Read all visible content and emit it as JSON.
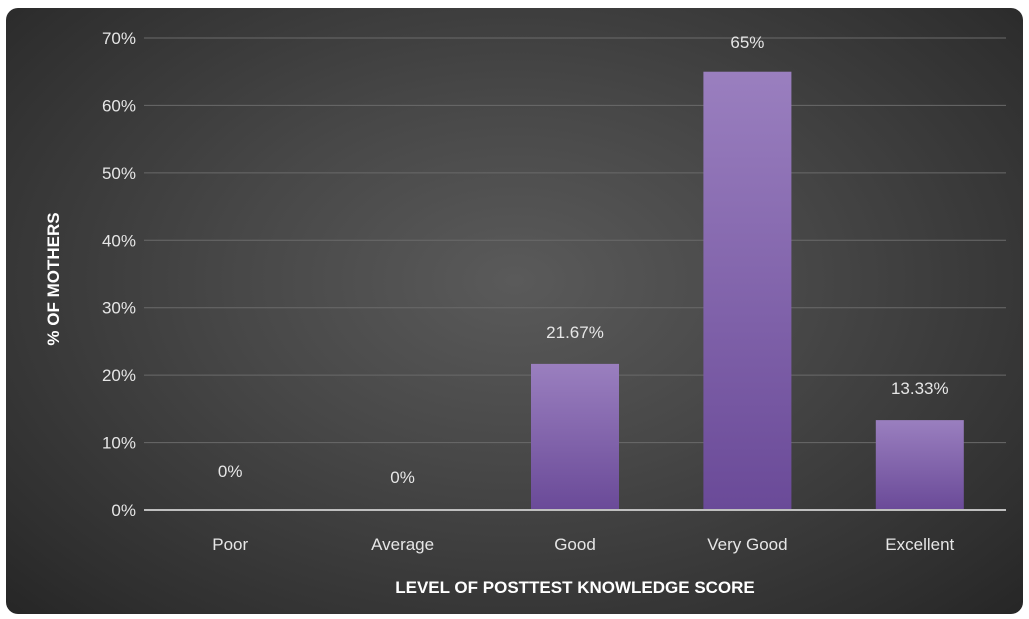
{
  "chart_data": {
    "type": "bar",
    "categories": [
      "Poor",
      "Average",
      "Good",
      "Very Good",
      "Excellent"
    ],
    "values": [
      0,
      0,
      21.67,
      65,
      13.33
    ],
    "data_labels": [
      "0%",
      "0%",
      "21.67%",
      "65%",
      "13.33%"
    ],
    "title": "",
    "xlabel": "LEVEL OF POSTTEST KNOWLEDGE SCORE",
    "ylabel": "% OF MOTHERS",
    "ylim": [
      0,
      70
    ],
    "yticks": [
      0,
      10,
      20,
      30,
      40,
      50,
      60,
      70
    ],
    "ytick_labels": [
      "0%",
      "10%",
      "20%",
      "30%",
      "40%",
      "50%",
      "60%",
      "70%"
    ],
    "grid": true,
    "legend": "none",
    "colors": {
      "bar_top": "#9a7fbf",
      "bar_bottom": "#6a4a98",
      "background": "#474747",
      "grid": "#6a6a6a",
      "text": "#e6e6e6"
    }
  }
}
